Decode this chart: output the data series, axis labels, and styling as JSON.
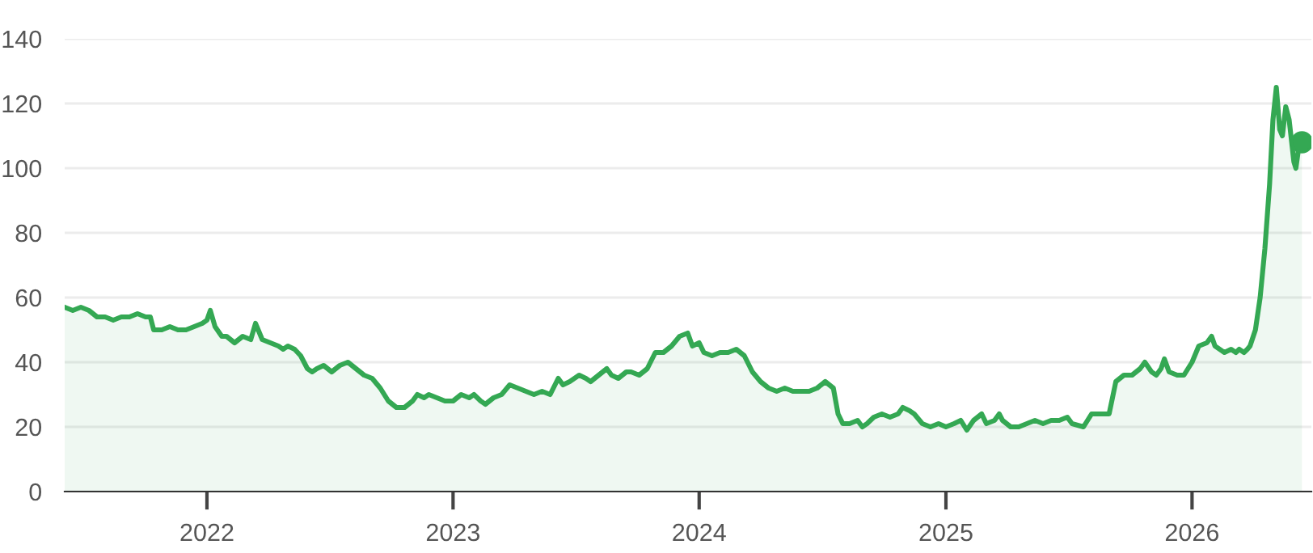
{
  "chart_data": {
    "type": "area",
    "xlim": [
      "2021-06-04",
      "2026-06-27"
    ],
    "ylim": [
      0,
      140
    ],
    "xticks": [
      {
        "value": "2022-01-01",
        "label": "2022"
      },
      {
        "value": "2023-01-01",
        "label": "2023"
      },
      {
        "value": "2024-01-01",
        "label": "2024"
      },
      {
        "value": "2025-01-01",
        "label": "2025"
      },
      {
        "value": "2026-01-01",
        "label": "2026"
      }
    ],
    "yticks": [
      0,
      20,
      40,
      60,
      80,
      100,
      120,
      140
    ],
    "grid": "y",
    "legend": false,
    "series": [
      {
        "color": "#34a853",
        "x": [
          "2021-06-04",
          "2021-06-16",
          "2021-06-28",
          "2021-07-10",
          "2021-07-22",
          "2021-08-03",
          "2021-08-15",
          "2021-08-27",
          "2021-09-08",
          "2021-09-20",
          "2021-10-02",
          "2021-10-09",
          "2021-10-14",
          "2021-10-26",
          "2021-11-07",
          "2021-11-19",
          "2021-12-01",
          "2021-12-13",
          "2021-12-25",
          "2022-01-01",
          "2022-01-06",
          "2022-01-13",
          "2022-01-23",
          "2022-01-30",
          "2022-02-11",
          "2022-02-23",
          "2022-03-07",
          "2022-03-14",
          "2022-03-24",
          "2022-04-05",
          "2022-04-17",
          "2022-04-24",
          "2022-05-01",
          "2022-05-11",
          "2022-05-20",
          "2022-05-30",
          "2022-06-06",
          "2022-06-13",
          "2022-06-23",
          "2022-07-05",
          "2022-07-17",
          "2022-07-29",
          "2022-08-10",
          "2022-08-22",
          "2022-09-03",
          "2022-09-15",
          "2022-09-27",
          "2022-10-09",
          "2022-10-21",
          "2022-11-02",
          "2022-11-09",
          "2022-11-19",
          "2022-11-26",
          "2022-12-08",
          "2022-12-20",
          "2023-01-01",
          "2023-01-13",
          "2023-01-25",
          "2023-02-01",
          "2023-02-11",
          "2023-02-18",
          "2023-03-02",
          "2023-03-14",
          "2023-03-26",
          "2023-04-07",
          "2023-04-19",
          "2023-05-01",
          "2023-05-13",
          "2023-05-25",
          "2023-06-06",
          "2023-06-13",
          "2023-06-23",
          "2023-07-07",
          "2023-07-17",
          "2023-07-24",
          "2023-08-05",
          "2023-08-17",
          "2023-08-24",
          "2023-09-03",
          "2023-09-15",
          "2023-09-22",
          "2023-10-04",
          "2023-10-16",
          "2023-10-28",
          "2023-11-09",
          "2023-11-21",
          "2023-12-03",
          "2023-12-15",
          "2023-12-22",
          "2024-01-01",
          "2024-01-08",
          "2024-01-20",
          "2024-02-01",
          "2024-02-13",
          "2024-02-25",
          "2024-03-08",
          "2024-03-20",
          "2024-04-01",
          "2024-04-13",
          "2024-04-25",
          "2024-05-07",
          "2024-05-19",
          "2024-05-31",
          "2024-06-12",
          "2024-06-24",
          "2024-07-06",
          "2024-07-18",
          "2024-07-25",
          "2024-08-01",
          "2024-08-11",
          "2024-08-23",
          "2024-08-30",
          "2024-09-06",
          "2024-09-16",
          "2024-09-28",
          "2024-10-10",
          "2024-10-22",
          "2024-10-29",
          "2024-11-08",
          "2024-11-15",
          "2024-11-27",
          "2024-12-09",
          "2024-12-21",
          "2025-01-01",
          "2025-01-13",
          "2025-01-23",
          "2025-02-01",
          "2025-02-11",
          "2025-02-23",
          "2025-03-02",
          "2025-03-14",
          "2025-03-21",
          "2025-03-26",
          "2025-04-07",
          "2025-04-19",
          "2025-05-01",
          "2025-05-13",
          "2025-05-25",
          "2025-06-06",
          "2025-06-18",
          "2025-06-30",
          "2025-07-07",
          "2025-07-24",
          "2025-08-05",
          "2025-08-17",
          "2025-08-31",
          "2025-09-10",
          "2025-09-22",
          "2025-10-04",
          "2025-10-16",
          "2025-10-23",
          "2025-11-02",
          "2025-11-09",
          "2025-11-16",
          "2025-11-21",
          "2025-11-28",
          "2025-12-10",
          "2025-12-20",
          "2026-01-01",
          "2026-01-11",
          "2026-01-23",
          "2026-01-30",
          "2026-02-04",
          "2026-02-11",
          "2026-02-18",
          "2026-02-28",
          "2026-03-07",
          "2026-03-12",
          "2026-03-19",
          "2026-03-24",
          "2026-03-28",
          "2026-04-05",
          "2026-04-12",
          "2026-04-19",
          "2026-04-26",
          "2026-05-01",
          "2026-05-06",
          "2026-05-11",
          "2026-05-15",
          "2026-05-20",
          "2026-05-25",
          "2026-06-01",
          "2026-06-04",
          "2026-06-08",
          "2026-06-13"
        ],
        "values": [
          57,
          56,
          57,
          56,
          54,
          54,
          53,
          54,
          54,
          55,
          54,
          54,
          50,
          50,
          51,
          50,
          50,
          51,
          52,
          53,
          56,
          51,
          48,
          48,
          46,
          48,
          47,
          52,
          47,
          46,
          45,
          44,
          45,
          44,
          42,
          38,
          37,
          38,
          39,
          37,
          39,
          40,
          38,
          36,
          35,
          32,
          28,
          26,
          26,
          28,
          30,
          29,
          30,
          29,
          28,
          28,
          30,
          29,
          30,
          28,
          27,
          29,
          30,
          33,
          32,
          31,
          30,
          31,
          30,
          35,
          33,
          34,
          36,
          35,
          34,
          36,
          38,
          36,
          35,
          37,
          37,
          36,
          38,
          43,
          43,
          45,
          48,
          49,
          45,
          46,
          43,
          42,
          43,
          43,
          44,
          42,
          37,
          34,
          32,
          31,
          32,
          31,
          31,
          31,
          32,
          34,
          32,
          24,
          21,
          21,
          22,
          20,
          21,
          23,
          24,
          23,
          24,
          26,
          25,
          24,
          21,
          20,
          21,
          20,
          21,
          22,
          19,
          22,
          24,
          21,
          22,
          24,
          22,
          20,
          20,
          21,
          22,
          21,
          22,
          22,
          23,
          21,
          20,
          24,
          24,
          24,
          34,
          36,
          36,
          38,
          40,
          37,
          36,
          38,
          41,
          37,
          36,
          36,
          40,
          45,
          46,
          48,
          45,
          44,
          43,
          44,
          43,
          44,
          43,
          44,
          45,
          50,
          60,
          75,
          95,
          115,
          125,
          112,
          110,
          119,
          115,
          102,
          100,
          106,
          108
        ]
      },
      {
        "type": "scatter",
        "color": "#34a853",
        "marker": "circle",
        "x": [
          "2026-06-13"
        ],
        "values": [
          108
        ]
      }
    ]
  }
}
